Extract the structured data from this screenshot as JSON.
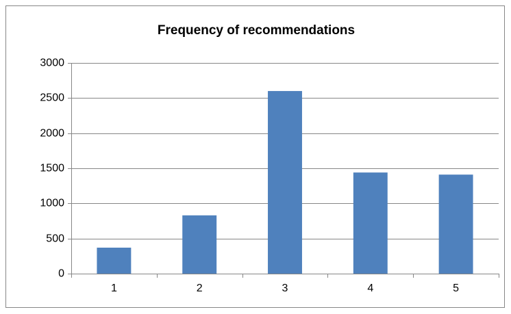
{
  "chart_data": {
    "type": "bar",
    "title": "Frequency of recommendations",
    "categories": [
      "1",
      "2",
      "3",
      "4",
      "5"
    ],
    "values": [
      370,
      830,
      2600,
      1440,
      1410
    ],
    "color": "#4f81bd",
    "ylim": [
      0,
      3000
    ],
    "yticks": [
      0,
      500,
      1000,
      1500,
      2000,
      2500,
      3000
    ],
    "grid": true
  }
}
